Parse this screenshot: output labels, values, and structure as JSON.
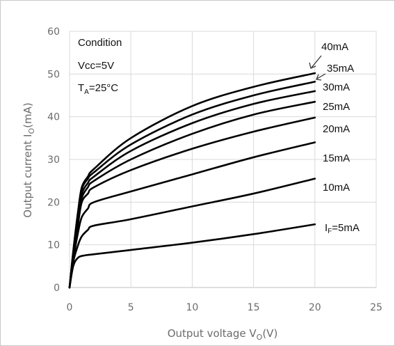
{
  "chart_data": {
    "type": "line",
    "xlabel": "Output voltage V",
    "xlabel_sub": "O",
    "xlabel_unit": "(V)",
    "ylabel": "Output current I",
    "ylabel_sub": "O",
    "ylabel_unit": "(mA)",
    "xlim": [
      0,
      25
    ],
    "ylim": [
      0,
      60
    ],
    "xticks": [
      "0",
      "5",
      "10",
      "15",
      "20",
      "25"
    ],
    "yticks": [
      "0",
      "10",
      "20",
      "30",
      "40",
      "50",
      "60"
    ],
    "grid": true,
    "condition": {
      "title": "Condition",
      "vcc": "Vcc=5V",
      "ta_main": "T",
      "ta_sub": "A",
      "ta_value": "=25°C"
    },
    "series": [
      {
        "name": "I",
        "name_sub": "F",
        "name_tail": "=5mA",
        "x": [
          0,
          0.3,
          0.7,
          1.2,
          2,
          5,
          10,
          15,
          20
        ],
        "values": [
          0,
          5,
          7,
          7.5,
          7.8,
          8.8,
          10.5,
          12.5,
          14.8
        ]
      },
      {
        "name": "10mA",
        "x": [
          0,
          0.3,
          0.7,
          1.0,
          1.5,
          2,
          5,
          10,
          15,
          20
        ],
        "values": [
          0,
          6,
          10,
          12,
          13.5,
          14.5,
          16,
          19,
          22,
          25.5
        ]
      },
      {
        "name": "15mA",
        "x": [
          0,
          0.3,
          0.7,
          1.0,
          1.5,
          2,
          5,
          10,
          15,
          20
        ],
        "values": [
          0,
          6.5,
          13,
          16.5,
          18.5,
          20,
          22.5,
          26.5,
          30.5,
          34
        ]
      },
      {
        "name": "20mA",
        "x": [
          0,
          0.3,
          0.7,
          1.0,
          1.5,
          2,
          5,
          10,
          15,
          20
        ],
        "values": [
          0,
          7,
          15,
          20,
          22,
          23.5,
          27.5,
          32.5,
          36.5,
          39.8
        ]
      },
      {
        "name": "25mA",
        "x": [
          0,
          0.3,
          0.7,
          1.0,
          1.5,
          2,
          5,
          10,
          15,
          20
        ],
        "values": [
          0,
          7.5,
          16,
          21,
          23.5,
          25,
          30,
          36,
          40.5,
          43.5
        ]
      },
      {
        "name": "30mA",
        "x": [
          0,
          0.3,
          0.7,
          1.0,
          1.5,
          2,
          5,
          10,
          15,
          20
        ],
        "values": [
          0,
          8,
          17,
          22,
          24.5,
          26,
          32,
          38.5,
          43,
          46
        ]
      },
      {
        "name": "35mA",
        "x": [
          0,
          0.3,
          0.7,
          1.0,
          1.5,
          2,
          5,
          10,
          15,
          20
        ],
        "values": [
          0,
          8,
          17.5,
          23,
          25.5,
          27,
          33.5,
          40.5,
          45,
          48.2
        ]
      },
      {
        "name": "40mA",
        "x": [
          0,
          0.3,
          0.7,
          1.0,
          1.5,
          2,
          5,
          10,
          15,
          20
        ],
        "values": [
          0,
          8.5,
          18,
          23.5,
          26,
          27.8,
          35,
          42.5,
          47,
          50.2
        ]
      }
    ],
    "line_color": "#000000",
    "grid_color": "#d9d9d9",
    "axis_text_color": "#6b6b6b"
  }
}
